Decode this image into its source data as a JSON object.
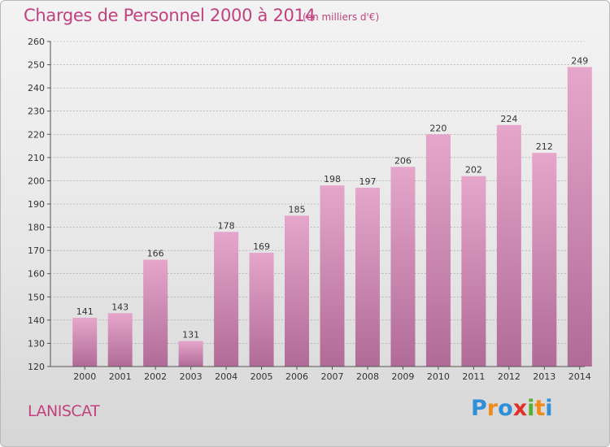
{
  "header": {
    "title": "Charges de Personnel 2000 à 2014",
    "subtitle": "(en milliers d'€)"
  },
  "footer": {
    "city": "LANISCAT",
    "logo_text": "Proxiti",
    "logo_icon": "proxiti-logo-icon"
  },
  "colors": {
    "accent": "#c2417f",
    "bar_top": "#e6a6cb",
    "bar_bottom": "#b06b97",
    "grid": "#888888"
  },
  "chart_data": {
    "type": "bar",
    "title": "Charges de Personnel 2000 à 2014",
    "subtitle": "(en milliers d'€)",
    "xlabel": "",
    "ylabel": "",
    "categories": [
      "2000",
      "2001",
      "2002",
      "2003",
      "2004",
      "2005",
      "2006",
      "2007",
      "2008",
      "2009",
      "2010",
      "2011",
      "2012",
      "2013",
      "2014"
    ],
    "values": [
      141,
      143,
      166,
      131,
      178,
      169,
      185,
      198,
      197,
      206,
      220,
      202,
      224,
      212,
      249
    ],
    "ylim": [
      120,
      260
    ],
    "yticks": [
      120,
      130,
      140,
      150,
      160,
      170,
      180,
      190,
      200,
      210,
      220,
      230,
      240,
      250,
      260
    ],
    "grid": true,
    "legend": "none"
  }
}
